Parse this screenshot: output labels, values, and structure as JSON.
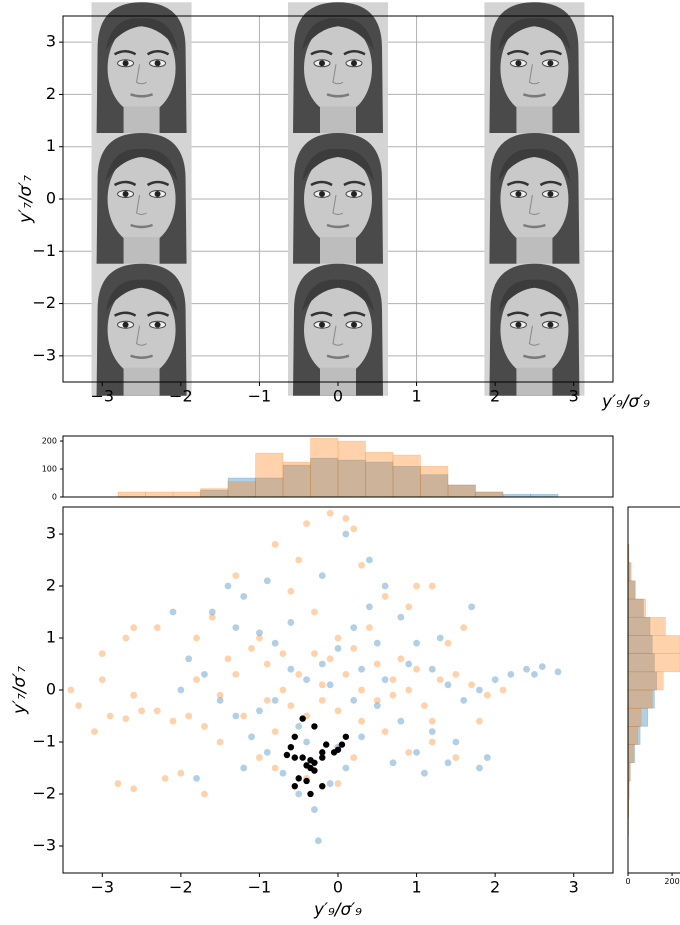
{
  "chart_data": [
    {
      "type": "image-grid",
      "xlabel": "y′₉/σ′₉",
      "ylabel": "y′₇/σ′₇",
      "xlim": [
        -3.5,
        3.5
      ],
      "ylim": [
        -3.5,
        3.5
      ],
      "xticks": [
        {
          "value": -3,
          "label": "−3"
        },
        {
          "value": -2,
          "label": "−2"
        },
        {
          "value": -1,
          "label": "−1"
        },
        0,
        1,
        2,
        3
      ],
      "yticks": [
        {
          "value": -3,
          "label": "−3"
        },
        {
          "value": -2,
          "label": "−2"
        },
        {
          "value": -1,
          "label": "−1"
        },
        0,
        1,
        2,
        3
      ],
      "grid": true
    },
    {
      "type": "histogram",
      "orientation": "vertical",
      "xlim": [
        -3.5,
        3.5
      ],
      "ylim": [
        0,
        218
      ],
      "yticks": [
        0,
        100,
        200
      ],
      "bins": [
        -2.8,
        -2.45,
        -2.1,
        -1.75,
        -1.4,
        -1.05,
        -0.7,
        -0.35,
        0,
        0.35,
        0.7,
        1.05,
        1.4,
        1.75,
        2.1,
        2.45,
        2.8
      ],
      "series": [
        {
          "color": "#1f77b4",
          "values": [
            0,
            0,
            0,
            25,
            68,
            68,
            114,
            139,
            132,
            125,
            110,
            80,
            43,
            18,
            10,
            10
          ]
        },
        {
          "color": "#ff7f0e",
          "values": [
            18,
            18,
            18,
            30,
            55,
            157,
            125,
            210,
            200,
            160,
            150,
            110,
            43,
            18,
            0,
            0
          ]
        }
      ]
    },
    {
      "type": "scatter",
      "xlabel": "y′₉/σ′₉",
      "ylabel": "y′₇/σ′₇",
      "xlim": [
        -3.5,
        3.5
      ],
      "ylim": [
        -3.52,
        3.52
      ],
      "xticks": [
        {
          "value": -3,
          "label": "−3"
        },
        {
          "value": -2,
          "label": "−2"
        },
        {
          "value": -1,
          "label": "−1"
        },
        0,
        1,
        2,
        3
      ],
      "yticks": [
        {
          "value": -3,
          "label": "−3"
        },
        {
          "value": -2,
          "label": "−2"
        },
        {
          "value": -1,
          "label": "−1"
        },
        0,
        1,
        2,
        3
      ],
      "series": [
        {
          "color": "#1f77b4",
          "x": [
            -1.6,
            -1.4,
            -1.2,
            -1.0,
            -0.8,
            -0.6,
            -0.4,
            -0.2,
            0.0,
            0.2,
            0.4,
            0.6,
            0.8,
            1.0,
            1.2,
            1.4,
            1.6,
            1.8,
            2.0,
            2.2,
            2.4,
            2.6,
            2.8,
            1.9,
            1.8,
            1.5,
            1.2,
            1.0,
            0.8,
            0.5,
            0.3,
            0.1,
            -0.1,
            -0.3,
            -0.5,
            -0.7,
            -0.9,
            -1.1,
            -1.3,
            -1.5,
            -1.7,
            -1.9,
            -2.0,
            -1.2,
            -1.0,
            -0.5,
            0.2,
            0.6,
            0.9,
            1.3,
            -0.1,
            -0.6,
            0.4,
            0.1,
            -0.2,
            -0.9,
            -1.3,
            0.7,
            1.1,
            1.4,
            0.0,
            -0.4,
            -0.25,
            -2.1,
            -1.8,
            0.5,
            1.7,
            2.5,
            -0.8,
            0.3
          ],
          "values": [
            1.5,
            2.0,
            1.8,
            1.1,
            0.9,
            0.4,
            0.2,
            0.5,
            0.8,
            1.2,
            1.6,
            2.0,
            1.4,
            0.9,
            0.4,
            0.1,
            -0.2,
            0.0,
            0.2,
            0.3,
            0.4,
            0.45,
            0.35,
            -1.3,
            -1.5,
            -1.0,
            -0.8,
            -1.2,
            -0.6,
            -0.3,
            -0.9,
            -1.5,
            -1.8,
            -2.3,
            -2.0,
            -1.6,
            -1.2,
            -0.9,
            -0.5,
            -0.2,
            0.3,
            0.6,
            0.0,
            -1.5,
            -0.4,
            -0.7,
            -0.2,
            0.2,
            0.5,
            1.0,
            0.1,
            1.3,
            2.5,
            3.0,
            2.2,
            2.1,
            1.2,
            -1.4,
            -1.6,
            -1.4,
            -1.1,
            -1.0,
            -2.9,
            1.5,
            -1.7,
            0.9,
            1.6,
            0.3,
            -0.2,
            0.4
          ]
        },
        {
          "color": "#ff7f0e",
          "x": [
            -3.4,
            -3.3,
            -3.1,
            -2.9,
            -2.7,
            -2.5,
            -2.3,
            -2.1,
            -1.9,
            -1.7,
            -2.8,
            -2.6,
            -2.2,
            -2.0,
            -1.7,
            -3.0,
            -2.7,
            -3.0,
            -1.8,
            -1.5,
            -1.3,
            -1.1,
            -0.9,
            -0.7,
            -0.5,
            -0.3,
            -0.1,
            0.1,
            0.3,
            0.5,
            0.7,
            0.9,
            1.1,
            1.3,
            1.5,
            1.7,
            1.9,
            2.1,
            1.2,
            0.9,
            0.6,
            0.3,
            0.0,
            -0.2,
            -0.4,
            -0.6,
            -0.8,
            -1.0,
            -1.2,
            -1.4,
            -1.6,
            -1.3,
            -0.8,
            -0.4,
            -0.1,
            0.1,
            0.2,
            -0.5,
            0.3,
            0.6,
            0.9,
            1.0,
            1.2,
            0.4,
            0.0,
            -0.3,
            -0.6,
            -1.0,
            -1.8,
            -2.3,
            -2.6,
            0.2,
            0.0,
            -0.4,
            -0.8,
            1.5,
            1.8,
            1.4,
            0.8,
            0.5,
            0.2,
            -0.2,
            1.6,
            0.7,
            -0.9,
            -1.5,
            1.0,
            -0.7,
            -2.6,
            1.2
          ],
          "values": [
            0.0,
            -0.3,
            -0.8,
            -0.5,
            -0.55,
            -0.4,
            -0.4,
            -0.6,
            -0.5,
            -0.7,
            -1.8,
            -1.9,
            -1.7,
            -1.6,
            -2.0,
            0.2,
            1.0,
            0.7,
            1.0,
            -1.0,
            0.3,
            0.8,
            0.5,
            0.0,
            0.3,
            0.7,
            0.6,
            0.3,
            0.0,
            -0.2,
            0.2,
            0.0,
            -0.3,
            0.2,
            0.3,
            0.1,
            -0.1,
            0.0,
            -1.0,
            -1.2,
            -0.8,
            -0.6,
            -0.4,
            -0.2,
            -0.5,
            -0.3,
            -0.8,
            -1.3,
            -0.5,
            0.6,
            1.4,
            2.2,
            2.8,
            3.2,
            3.4,
            3.3,
            3.1,
            2.5,
            2.4,
            1.8,
            1.6,
            2.0,
            2.0,
            1.2,
            1.0,
            1.5,
            1.9,
            1.0,
            0.2,
            1.2,
            1.2,
            -1.3,
            -1.8,
            -1.7,
            -1.5,
            -1.3,
            -0.6,
            0.9,
            0.6,
            0.5,
            0.8,
            0.1,
            1.2,
            -0.1,
            -0.2,
            -0.1,
            0.4,
            0.7,
            -0.1,
            -0.6
          ]
        },
        {
          "color": "#000000",
          "x": [
            -0.45,
            -0.3,
            -0.55,
            -0.6,
            -0.65,
            -0.55,
            -0.45,
            -0.35,
            -0.3,
            -0.35,
            -0.4,
            -0.2,
            -0.15,
            -0.05,
            0.0,
            0.05,
            0.1,
            -0.2,
            -0.55,
            -0.4,
            -0.35,
            -0.2,
            -0.3,
            -0.5
          ],
          "values": [
            -0.55,
            -0.7,
            -0.9,
            -1.1,
            -1.25,
            -1.3,
            -1.3,
            -1.35,
            -1.4,
            -1.5,
            -1.45,
            -1.2,
            -1.05,
            -1.2,
            -1.15,
            -1.05,
            -0.9,
            -1.3,
            -1.85,
            -1.75,
            -2.0,
            -1.85,
            -1.55,
            -1.7
          ]
        }
      ]
    },
    {
      "type": "histogram",
      "orientation": "horizontal",
      "xlim": [
        0,
        236
      ],
      "ylim": [
        -3.52,
        3.52
      ],
      "xticks": [
        0,
        200
      ],
      "bins": [
        -2.8,
        -2.45,
        -2.1,
        -1.75,
        -1.4,
        -1.05,
        -0.7,
        -0.35,
        0,
        0.35,
        0.7,
        1.05,
        1.4,
        1.75,
        2.1,
        2.45,
        2.8
      ],
      "series": [
        {
          "color": "#1f77b4",
          "values": [
            2,
            3,
            5,
            10,
            30,
            55,
            90,
            120,
            130,
            120,
            110,
            100,
            70,
            30,
            10,
            3
          ]
        },
        {
          "color": "#ff7f0e",
          "values": [
            2,
            3,
            5,
            10,
            25,
            45,
            60,
            110,
            160,
            235,
            235,
            170,
            80,
            35,
            15,
            5
          ]
        }
      ]
    }
  ]
}
